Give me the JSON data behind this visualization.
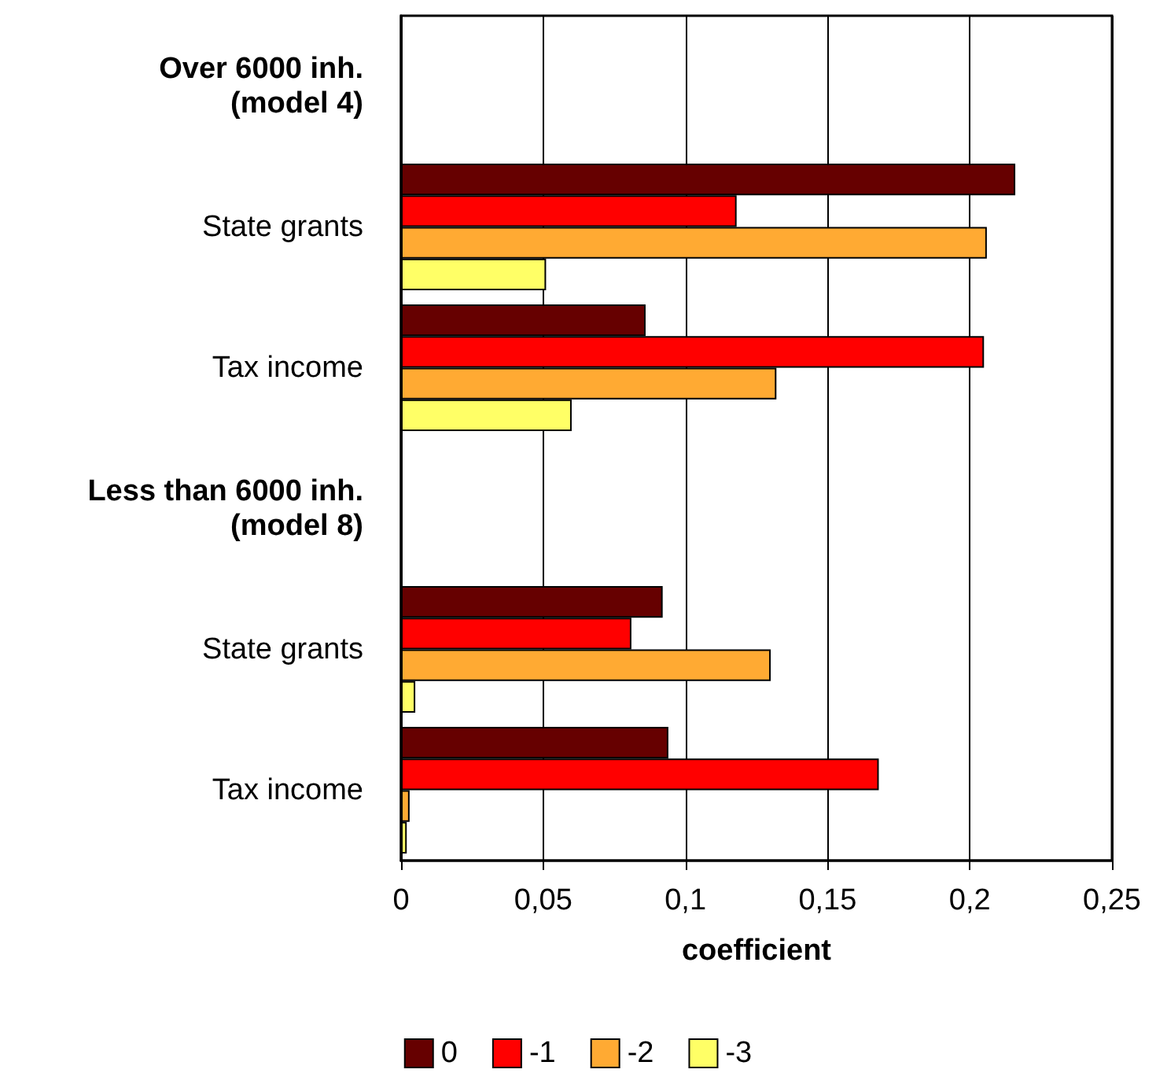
{
  "chart_data": {
    "type": "bar",
    "orientation": "horizontal",
    "xlabel": "coefficient",
    "categories": [
      "Over 6000 inh.\n(model 4)",
      "State grants",
      "Tax income",
      "Less than 6000 inh.\n(model 8)",
      "State grants",
      "Tax income"
    ],
    "series": [
      {
        "name": "0",
        "color": "#660000",
        "values": [
          null,
          0.216,
          0.086,
          null,
          0.092,
          0.094
        ]
      },
      {
        "name": "-1",
        "color": "#ff0000",
        "values": [
          null,
          0.118,
          0.205,
          null,
          0.081,
          0.168
        ]
      },
      {
        "name": "-2",
        "color": "#ffaa33",
        "values": [
          null,
          0.206,
          0.132,
          null,
          0.13,
          0.003
        ]
      },
      {
        "name": "-3",
        "color": "#ffff66",
        "values": [
          null,
          0.051,
          0.06,
          null,
          0.005,
          0.002
        ]
      }
    ],
    "xlim": [
      0,
      0.25
    ],
    "xticks": [
      0,
      {
        "value": 0.05,
        "label": "0,05"
      },
      {
        "value": 0.1,
        "label": "0,1"
      },
      {
        "value": 0.15,
        "label": "0,15"
      },
      {
        "value": 0.2,
        "label": "0,2"
      },
      {
        "value": 0.25,
        "label": "0,25"
      }
    ],
    "grid": "x",
    "legend": "bottom"
  }
}
